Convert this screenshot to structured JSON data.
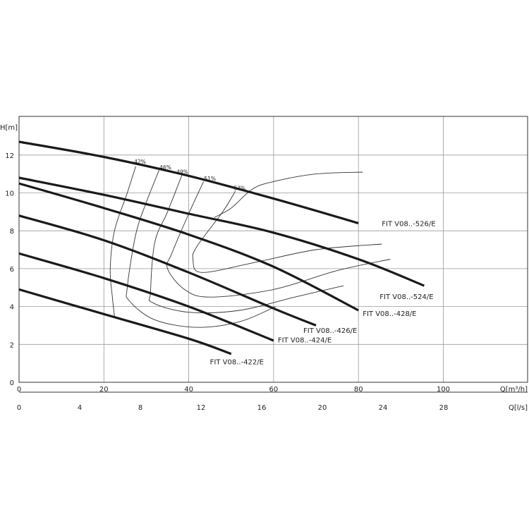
{
  "chart_data": {
    "type": "line",
    "xlabel": "Q[m³/h]",
    "x2label": "Q[l/s]",
    "ylabel": "H[m]",
    "xlim": [
      0,
      120
    ],
    "ylim": [
      0,
      14
    ],
    "grid": true,
    "x_ticks": [
      0,
      20,
      40,
      60,
      80,
      100
    ],
    "x2_ticks": [
      0,
      4,
      8,
      12,
      16,
      20,
      24,
      28
    ],
    "y_ticks": [
      0,
      2,
      4,
      6,
      8,
      10,
      12
    ],
    "series": [
      {
        "name": "FIT V08..-526/E",
        "x": [
          0,
          20,
          40,
          60,
          80
        ],
        "y": [
          12.7,
          11.9,
          10.9,
          9.7,
          8.4
        ]
      },
      {
        "name": "FIT V08..-524/E",
        "x": [
          0,
          20,
          40,
          60,
          80,
          95.5
        ],
        "y": [
          10.8,
          9.9,
          8.9,
          7.9,
          6.5,
          5.1
        ]
      },
      {
        "name": "FIT V08..-428/E",
        "x": [
          0,
          20,
          40,
          60,
          80
        ],
        "y": [
          10.5,
          9.2,
          7.8,
          6.1,
          3.8
        ]
      },
      {
        "name": "FIT V08..-426/E",
        "x": [
          0,
          20,
          40,
          60,
          70
        ],
        "y": [
          8.8,
          7.5,
          5.8,
          3.9,
          3.0
        ]
      },
      {
        "name": "FIT V08..-424/E",
        "x": [
          0,
          20,
          40,
          60
        ],
        "y": [
          6.8,
          5.5,
          4.0,
          2.2
        ]
      },
      {
        "name": "FIT V08..-422/E",
        "x": [
          0,
          20,
          40,
          50
        ],
        "y": [
          4.9,
          3.6,
          2.3,
          1.5
        ]
      }
    ],
    "efficiency_labels": [
      "42%",
      "46%",
      "49%",
      "51%",
      "53%"
    ],
    "efficiency_curves": [
      {
        "x": [
          27.5,
          25.5,
          22.5,
          21.5,
          22.0,
          22.5
        ],
        "y": [
          11.4,
          10.0,
          8.0,
          6.0,
          4.5,
          3.5
        ]
      },
      {
        "x": [
          33.0,
          30.0,
          27.5,
          25.5,
          26.0,
          32.0,
          42.0,
          52.0,
          60.5
        ],
        "y": [
          11.2,
          9.5,
          7.8,
          5.0,
          4.3,
          3.3,
          2.9,
          3.2,
          4.0
        ]
      },
      {
        "x": [
          38.5,
          35.0,
          32.0,
          31.0,
          31.5,
          40.0,
          52.0,
          65.0,
          76.5
        ],
        "y": [
          11.0,
          9.0,
          7.4,
          4.8,
          4.2,
          3.7,
          3.8,
          4.5,
          5.1
        ]
      },
      {
        "x": [
          43.5,
          40.0,
          36.0,
          35.0,
          39.0,
          45.0,
          60.0,
          75.0,
          87.5
        ],
        "y": [
          10.6,
          8.9,
          6.8,
          6.0,
          4.9,
          4.5,
          4.9,
          5.9,
          6.5
        ]
      },
      {
        "x": [
          51.0,
          48.0,
          42.0,
          41.0,
          43.0,
          55.0,
          70.0,
          85.5
        ],
        "y": [
          10.1,
          9.0,
          7.2,
          6.5,
          5.8,
          6.3,
          7.0,
          7.3
        ]
      },
      {
        "x": [
          81.0,
          70.0,
          60.0,
          55.0,
          50.0,
          46.0
        ],
        "y": [
          11.1,
          11.0,
          10.6,
          10.2,
          9.2,
          8.7
        ]
      }
    ],
    "units_note": ""
  }
}
